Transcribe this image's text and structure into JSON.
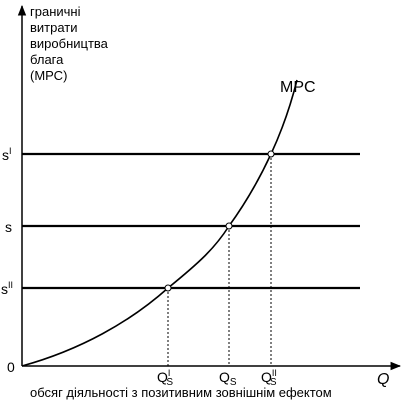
{
  "y_axis": {
    "label_lines": [
      "граничні",
      "витрати",
      "виробництва",
      "блага",
      "(МРС)"
    ]
  },
  "x_axis": {
    "label": "обсяг діяльності з позитивним зовнішнім ефектом",
    "symbol": "Q"
  },
  "origin": "0",
  "curve": {
    "label": "MPC"
  },
  "price_levels": [
    {
      "base": "s",
      "superscript": "I"
    },
    {
      "base": "s",
      "superscript": ""
    },
    {
      "base": "s",
      "superscript": "II"
    }
  ],
  "quantities": [
    {
      "base": "Q",
      "subscript": "S",
      "superscript": "I"
    },
    {
      "base": "Q",
      "subscript": "S",
      "superscript": ""
    },
    {
      "base": "Q",
      "subscript": "S",
      "superscript": "II"
    }
  ]
}
